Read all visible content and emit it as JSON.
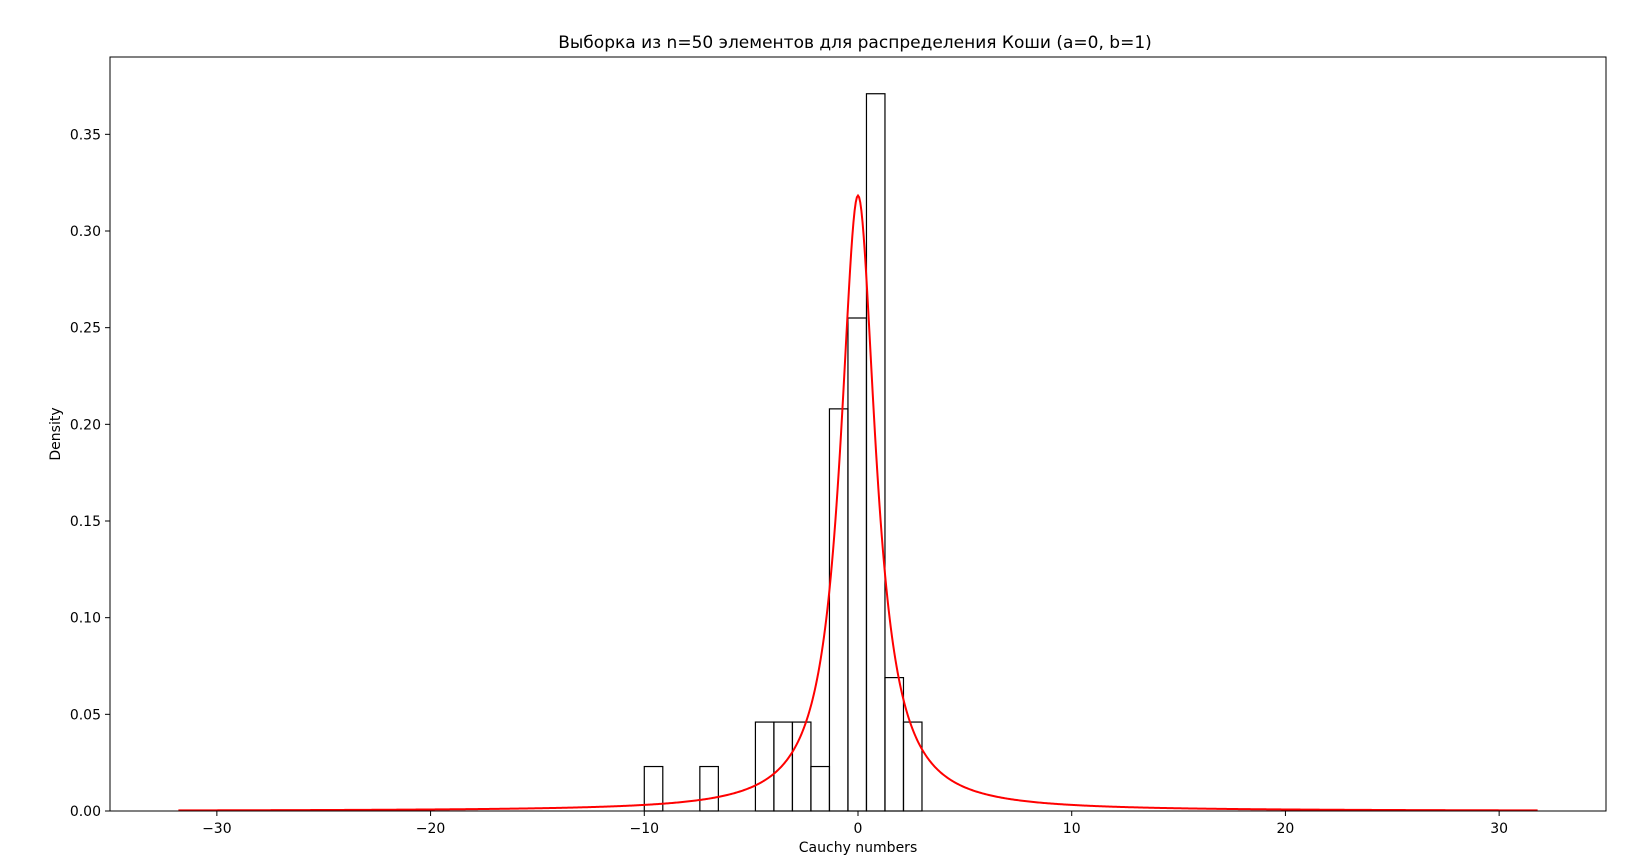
{
  "chart_data": {
    "type": "bar",
    "subtype": "histogram-with-density",
    "title": "Выборка из n=50 элементов для распределения Коши (a=0, b=1)",
    "xlabel": "Cauchy numbers",
    "ylabel": "Density",
    "xlim": [
      -35,
      35
    ],
    "ylim": [
      0,
      0.39
    ],
    "xticks": [
      -30,
      -20,
      -10,
      0,
      10,
      20,
      30
    ],
    "xtick_labels": [
      "−30",
      "−20",
      "−10",
      "0",
      "10",
      "20",
      "30"
    ],
    "yticks": [
      0.0,
      0.05,
      0.1,
      0.15,
      0.2,
      0.25,
      0.3,
      0.35
    ],
    "ytick_labels": [
      "0.00",
      "0.05",
      "0.10",
      "0.15",
      "0.20",
      "0.25",
      "0.30",
      "0.35"
    ],
    "grid": false,
    "histogram": {
      "bin_width": 0.866,
      "bins": [
        {
          "x0": -10.0,
          "x1": -9.134,
          "density": 0.023
        },
        {
          "x0": -7.4,
          "x1": -6.534,
          "density": 0.023
        },
        {
          "x0": -4.8,
          "x1": -3.934,
          "density": 0.046
        },
        {
          "x0": -3.934,
          "x1": -3.068,
          "density": 0.046
        },
        {
          "x0": -3.068,
          "x1": -2.202,
          "density": 0.046
        },
        {
          "x0": -2.202,
          "x1": -1.336,
          "density": 0.023
        },
        {
          "x0": -1.336,
          "x1": -0.47,
          "density": 0.208
        },
        {
          "x0": -0.47,
          "x1": 0.396,
          "density": 0.255
        },
        {
          "x0": 0.396,
          "x1": 1.262,
          "density": 0.371
        },
        {
          "x0": 1.262,
          "x1": 2.128,
          "density": 0.069
        },
        {
          "x0": 2.128,
          "x1": 2.994,
          "density": 0.046
        }
      ],
      "edge_color": "#000000",
      "fill": "none"
    },
    "density_curve": {
      "distribution": "cauchy",
      "a": 0,
      "b": 1,
      "x_range": [
        -31.8,
        31.8
      ],
      "color": "#ff0000"
    }
  }
}
